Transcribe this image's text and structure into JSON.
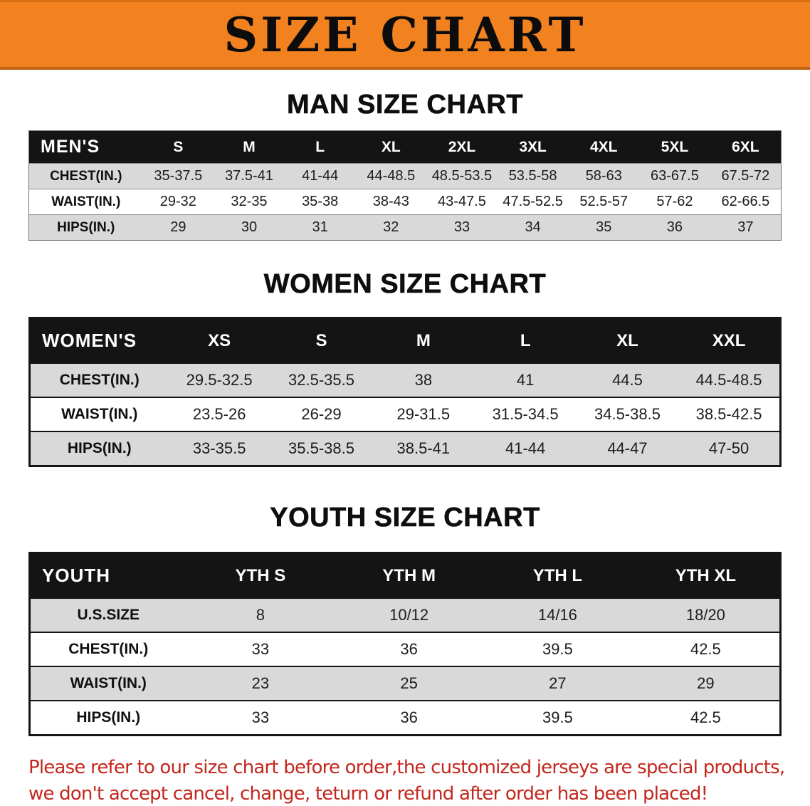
{
  "banner": {
    "title": "SIZE CHART"
  },
  "sections": [
    {
      "id": "men",
      "heading": "MAN SIZE CHART",
      "table": {
        "header": [
          "MEN'S",
          "S",
          "M",
          "L",
          "XL",
          "2XL",
          "3XL",
          "4XL",
          "5XL",
          "6XL"
        ],
        "rows": [
          [
            "CHEST(IN.)",
            "35-37.5",
            "37.5-41",
            "41-44",
            "44-48.5",
            "48.5-53.5",
            "53.5-58",
            "58-63",
            "63-67.5",
            "67.5-72"
          ],
          [
            "WAIST(IN.)",
            "29-32",
            "32-35",
            "35-38",
            "38-43",
            "43-47.5",
            "47.5-52.5",
            "52.5-57",
            "57-62",
            "62-66.5"
          ],
          [
            "HIPS(IN.)",
            "29",
            "30",
            "31",
            "32",
            "33",
            "34",
            "35",
            "36",
            "37"
          ]
        ]
      }
    },
    {
      "id": "women",
      "heading": "WOMEN SIZE CHART",
      "table": {
        "header": [
          "WOMEN'S",
          "XS",
          "S",
          "M",
          "L",
          "XL",
          "XXL"
        ],
        "rows": [
          [
            "CHEST(IN.)",
            "29.5-32.5",
            "32.5-35.5",
            "38",
            "41",
            "44.5",
            "44.5-48.5"
          ],
          [
            "WAIST(IN.)",
            "23.5-26",
            "26-29",
            "29-31.5",
            "31.5-34.5",
            "34.5-38.5",
            "38.5-42.5"
          ],
          [
            "HIPS(IN.)",
            "33-35.5",
            "35.5-38.5",
            "38.5-41",
            "41-44",
            "44-47",
            "47-50"
          ]
        ]
      }
    },
    {
      "id": "youth",
      "heading": "YOUTH SIZE CHART",
      "table": {
        "header": [
          "YOUTH",
          "YTH S",
          "YTH M",
          "YTH L",
          "YTH XL"
        ],
        "rows": [
          [
            "U.S.SIZE",
            "8",
            "10/12",
            "14/16",
            "18/20"
          ],
          [
            "CHEST(IN.)",
            "33",
            "36",
            "39.5",
            "42.5"
          ],
          [
            "WAIST(IN.)",
            "23",
            "25",
            "27",
            "29"
          ],
          [
            "HIPS(IN.)",
            "33",
            "36",
            "39.5",
            "42.5"
          ]
        ]
      }
    }
  ],
  "disclaimer": {
    "lines": [
      "Please refer to our size chart before order,the customized jerseys are special products,",
      "we don't accept cancel, change, teturn or refund after order has been placed!"
    ]
  },
  "colors": {
    "banner_bg": "#f28120",
    "table_header_bg": "#141414",
    "row_shade": "#d9d9d9",
    "disclaimer_red": "#c4271d"
  }
}
